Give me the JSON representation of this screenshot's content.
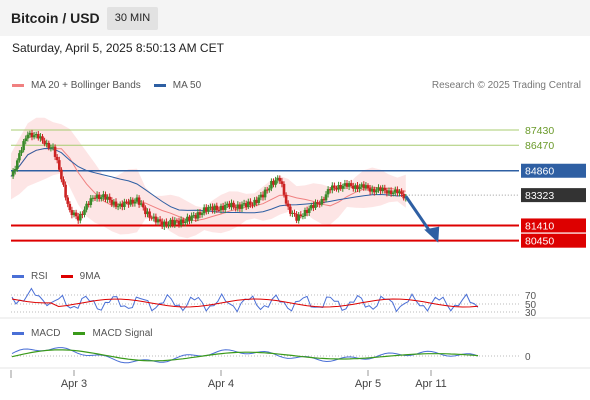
{
  "header": {
    "title": "Bitcoin / USD",
    "timeframe": "30 MIN"
  },
  "datetime": "Saturday, April 5, 2025 8:50:13 AM CET",
  "legend_main": [
    {
      "label": "MA 20 + Bollinger Bands",
      "color": "#f08080"
    },
    {
      "label": "MA 50",
      "color": "#2e5fa3"
    }
  ],
  "credit": "Research © 2025 Trading Central",
  "legend_rsi": [
    {
      "label": "RSI",
      "color": "#4a6fd6"
    },
    {
      "label": "9MA",
      "color": "#dd0000"
    }
  ],
  "legend_macd": [
    {
      "label": "MACD",
      "color": "#4a6fd6"
    },
    {
      "label": "MACD Signal",
      "color": "#3a9a1a"
    }
  ],
  "colors": {
    "up": "#3a8a2a",
    "down": "#cc2222",
    "pivot": "#2e5fa3",
    "target": "#a8cc70",
    "support": "#dd0000",
    "current": "#333333"
  },
  "chart_data": {
    "type": "candlestick",
    "y_range": [
      78980,
      89320
    ],
    "x_range": [
      0,
      120
    ],
    "x_ticks": [
      {
        "x": 15,
        "label": "Apr 3"
      },
      {
        "x": 50,
        "label": "Apr 4"
      },
      {
        "x": 85,
        "label": "Apr 5"
      },
      {
        "x": 100,
        "label": "Apr 11"
      }
    ],
    "levels": [
      {
        "value": 87430,
        "label": "87430",
        "kind": "target"
      },
      {
        "value": 86470,
        "label": "86470",
        "kind": "target"
      },
      {
        "value": 84860,
        "label": "84860",
        "kind": "pivot"
      },
      {
        "value": 83323,
        "label": "83323",
        "kind": "current"
      },
      {
        "value": 81410,
        "label": "81410",
        "kind": "support"
      },
      {
        "value": 80450,
        "label": "80450",
        "kind": "support"
      }
    ],
    "forecast": {
      "from": [
        94,
        83250
      ],
      "to": [
        101,
        80450
      ]
    },
    "rsi_levels": [
      "70",
      "50",
      "30"
    ],
    "macd_zero_label": "0"
  }
}
